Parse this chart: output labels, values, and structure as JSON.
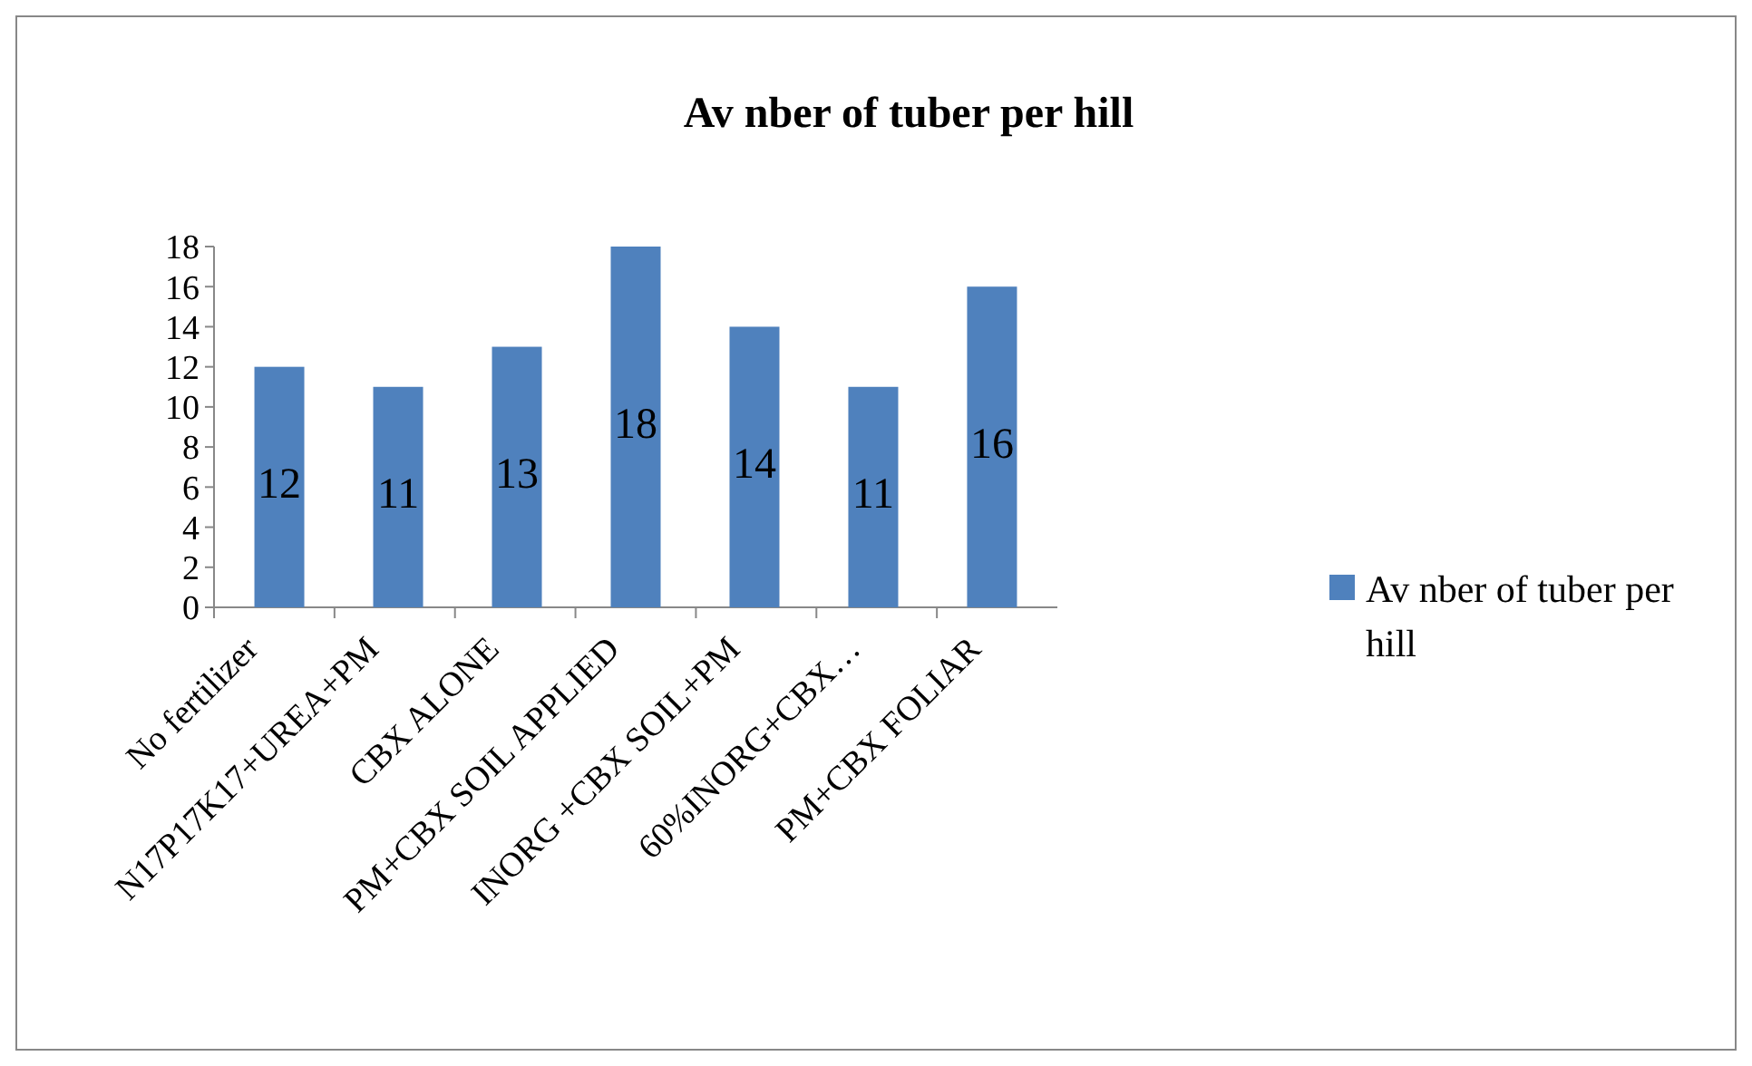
{
  "chart_data": {
    "type": "bar",
    "title": "Av nber of tuber per hill",
    "categories": [
      "No fertilizer",
      "N17P17K17+UREA+PM",
      "CBX ALONE",
      "PM+CBX SOIL APPLIED",
      "INORG +CBX SOIL+PM",
      "60%INORG+CBX…",
      "PM+CBX FOLIAR"
    ],
    "series": [
      {
        "name": "Av nber of tuber per hill",
        "color": "#4f81bd",
        "values": [
          12,
          11,
          13,
          18,
          14,
          11,
          16
        ]
      }
    ],
    "ylim": [
      0,
      18
    ],
    "yticks": [
      0,
      2,
      4,
      6,
      8,
      10,
      12,
      14,
      16,
      18
    ],
    "data_labels": true,
    "legend": "right",
    "grid": false
  }
}
